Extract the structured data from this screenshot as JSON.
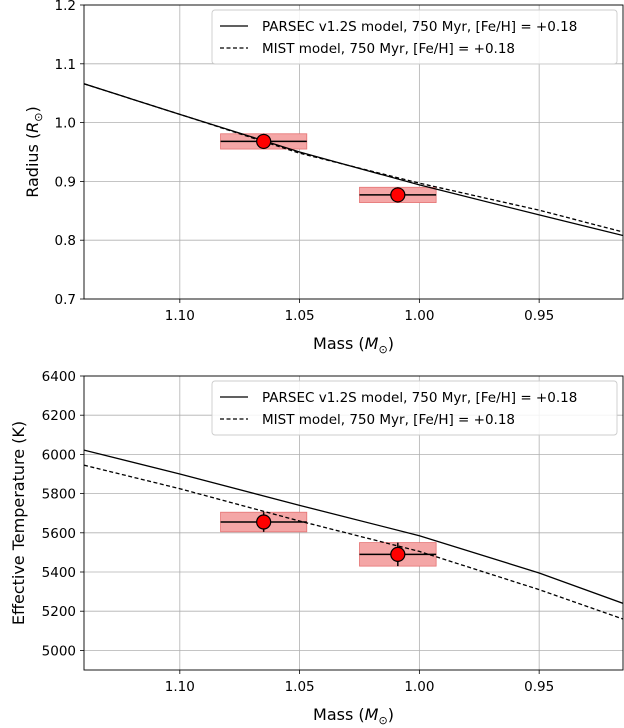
{
  "chart_data": [
    {
      "type": "line",
      "xlabel": "Mass (",
      "xlabel_sym": "M",
      "xlabel_sub": "⊙",
      "xlabel_end": ")",
      "ylabel": "Radius (",
      "ylabel_sym": "R",
      "ylabel_sub": "⊙",
      "ylabel_end": ")",
      "xlim": [
        1.14,
        0.915
      ],
      "ylim": [
        0.7,
        1.2
      ],
      "x_inverted": true,
      "xticks": [
        1.1,
        1.05,
        1.0,
        0.95
      ],
      "xtick_labels": [
        "1.10",
        "1.05",
        "1.00",
        "0.95"
      ],
      "yticks": [
        0.7,
        0.8,
        0.9,
        1.0,
        1.1,
        1.2
      ],
      "ytick_labels": [
        "0.7",
        "0.8",
        "0.9",
        "1.0",
        "1.1",
        "1.2"
      ],
      "grid": true,
      "legend_position": "top-right",
      "series": [
        {
          "name": "PARSEC v1.2S model, 750 Myr, [Fe/H] = +0.18",
          "style": "solid",
          "color": "#000000",
          "x": [
            1.14,
            1.1,
            1.05,
            1.0,
            0.95,
            0.915
          ],
          "y": [
            1.066,
            1.014,
            0.95,
            0.894,
            0.843,
            0.808
          ]
        },
        {
          "name": "MIST model, 750 Myr, [Fe/H] = +0.18",
          "style": "dashed",
          "color": "#000000",
          "x": [
            1.14,
            1.1,
            1.05,
            1.0,
            0.95,
            0.915
          ],
          "y": [
            1.066,
            1.014,
            0.948,
            0.897,
            0.851,
            0.814
          ]
        }
      ],
      "measurements": [
        {
          "x": 1.065,
          "y": 0.968,
          "x_err": 0.018,
          "y_err": 0.013
        },
        {
          "x": 1.009,
          "y": 0.877,
          "x_err": 0.016,
          "y_err": 0.013
        }
      ]
    },
    {
      "type": "line",
      "xlabel": "Mass (",
      "xlabel_sym": "M",
      "xlabel_sub": "⊙",
      "xlabel_end": ")",
      "ylabel": "Effective Temperature (K)",
      "xlim": [
        1.14,
        0.915
      ],
      "ylim": [
        4900,
        6400
      ],
      "x_inverted": true,
      "xticks": [
        1.1,
        1.05,
        1.0,
        0.95
      ],
      "xtick_labels": [
        "1.10",
        "1.05",
        "1.00",
        "0.95"
      ],
      "yticks": [
        5000,
        5200,
        5400,
        5600,
        5800,
        6000,
        6200,
        6400
      ],
      "ytick_labels": [
        "5000",
        "5200",
        "5400",
        "5600",
        "5800",
        "6000",
        "6200",
        "6400"
      ],
      "grid": true,
      "legend_position": "top-right",
      "series": [
        {
          "name": "PARSEC v1.2S model, 750 Myr, [Fe/H] = +0.18",
          "style": "solid",
          "color": "#000000",
          "x": [
            1.14,
            1.1,
            1.05,
            1.0,
            0.95,
            0.915
          ],
          "y": [
            6022,
            5900,
            5740,
            5585,
            5395,
            5240
          ]
        },
        {
          "name": "MIST model, 750 Myr, [Fe/H] = +0.18",
          "style": "dashed",
          "color": "#000000",
          "x": [
            1.14,
            1.1,
            1.05,
            1.0,
            0.95,
            0.915
          ],
          "y": [
            5945,
            5825,
            5660,
            5505,
            5310,
            5160
          ]
        }
      ],
      "measurements": [
        {
          "x": 1.065,
          "y": 5655,
          "x_err": 0.018,
          "y_err": 50
        },
        {
          "x": 1.009,
          "y": 5490,
          "x_err": 0.016,
          "y_err": 60
        }
      ]
    }
  ],
  "colors": {
    "model_line": "#000000",
    "grid": "#b0b0b0",
    "error_box": "#f4a6a6",
    "error_box_stroke": "#e57373",
    "marker_fill": "#ff0000",
    "marker_stroke": "#000000"
  }
}
